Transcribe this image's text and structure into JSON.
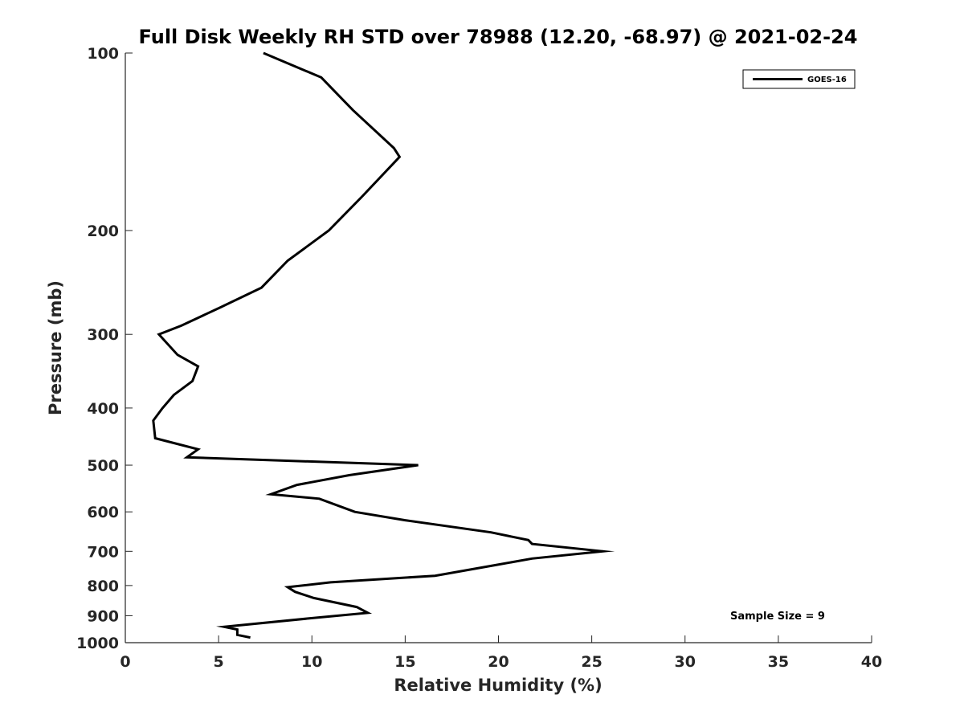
{
  "chart_data": {
    "type": "line",
    "title": "Full Disk Weekly RH STD over 78988 (12.20, -68.97) @ 2021-02-24",
    "xlabel": "Relative Humidity (%)",
    "ylabel": "Pressure (mb)",
    "xlim": [
      0,
      40
    ],
    "ylim": [
      100,
      1000
    ],
    "yscale": "log",
    "y_reversed": true,
    "x_ticks": [
      0,
      5,
      10,
      15,
      20,
      25,
      30,
      35,
      40
    ],
    "x_tick_labels": [
      "0",
      "5",
      "10",
      "15",
      "20",
      "25",
      "30",
      "35",
      "40"
    ],
    "y_ticks": [
      100,
      200,
      300,
      400,
      500,
      600,
      700,
      800,
      900,
      1000
    ],
    "y_tick_labels": [
      "100",
      "200",
      "300",
      "400",
      "500",
      "600",
      "700",
      "800",
      "900",
      "1000"
    ],
    "grid": false,
    "legend_position": "top-right",
    "series": [
      {
        "name": "GOES-16",
        "color": "#000000",
        "x": [
          7.4,
          10.5,
          12.2,
          14.4,
          14.7,
          12.7,
          10.9,
          8.7,
          7.3,
          5.1,
          3.0,
          1.8,
          2.8,
          3.9,
          3.6,
          2.6,
          2.0,
          1.5,
          1.6,
          3.9,
          3.3,
          15.7,
          12.0,
          9.2,
          7.8,
          10.4,
          12.3,
          15.0,
          19.6,
          21.6,
          21.8,
          25.6,
          21.8,
          19.7,
          16.6,
          11.0,
          8.7,
          9.1,
          10.1,
          12.4,
          13.0,
          9.8,
          5.3,
          6.0,
          6.0,
          6.7
        ],
        "y": [
          100,
          110,
          125,
          145,
          150,
          175,
          200,
          225,
          250,
          270,
          290,
          300,
          325,
          340,
          360,
          380,
          400,
          420,
          450,
          470,
          485,
          500,
          520,
          540,
          560,
          570,
          600,
          620,
          650,
          670,
          680,
          700,
          720,
          740,
          770,
          790,
          805,
          820,
          840,
          870,
          890,
          910,
          940,
          950,
          970,
          980
        ]
      }
    ],
    "annotations": [
      {
        "text": "Sample Size = 9",
        "x": 35,
        "y": 900
      }
    ]
  }
}
